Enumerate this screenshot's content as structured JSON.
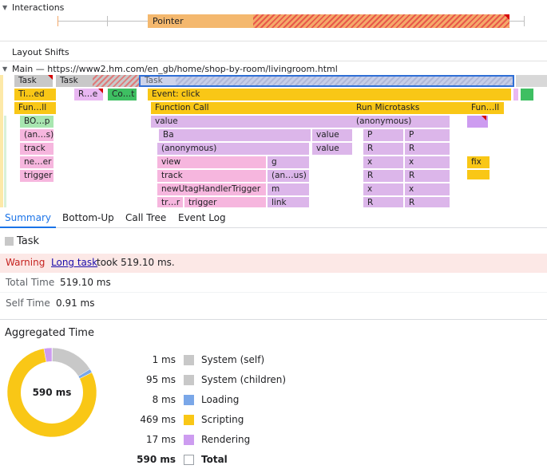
{
  "tracks": {
    "interactions_label": "Interactions",
    "pointer_label": "Pointer",
    "layout_shifts_label": "Layout Shifts",
    "main_label": "Main — https://www2.hm.com/en_gb/home/shop-by-room/livingroom.html"
  },
  "flame": {
    "row0": [
      "Task",
      "Task",
      "Task"
    ],
    "row1": [
      "Ti…ed",
      "R…e",
      "Co…t",
      "Event: click"
    ],
    "row2": [
      "Fun…ll",
      "Function Call",
      "Run Microtasks",
      "Fun…ll"
    ],
    "row3": [
      "BO…p",
      "value",
      "(anonymous)"
    ],
    "row4": [
      "(an…s)",
      "Ba",
      "value",
      "P",
      "P"
    ],
    "row5": [
      "track",
      "(anonymous)",
      "value",
      "R",
      "R"
    ],
    "row6": [
      "ne…er",
      "view",
      "g",
      "x",
      "x",
      "fix"
    ],
    "row7": [
      "trigger",
      "track",
      "(an…us)",
      "R",
      "R"
    ],
    "row8": [
      "newUtagHandlerTrigger",
      "m",
      "x",
      "x"
    ],
    "row9": [
      "tr…r",
      "trigger",
      "link",
      "R",
      "R"
    ]
  },
  "tabs": [
    "Summary",
    "Bottom-Up",
    "Call Tree",
    "Event Log"
  ],
  "summary": {
    "title": "Task",
    "warning_label": "Warning",
    "warning_link": "Long task",
    "warning_text": "took 519.10 ms.",
    "total_time_label": "Total Time",
    "total_time_value": "519.10 ms",
    "self_time_label": "Self Time",
    "self_time_value": "0.91 ms"
  },
  "aggregated": {
    "title": "Aggregated Time",
    "center_label": "590 ms",
    "rows": [
      {
        "ms": "1 ms",
        "name": "System (self)",
        "color": "#c8c8c8"
      },
      {
        "ms": "95 ms",
        "name": "System (children)",
        "color": "#c8c8c8"
      },
      {
        "ms": "8 ms",
        "name": "Loading",
        "color": "#7aa7e8"
      },
      {
        "ms": "469 ms",
        "name": "Scripting",
        "color": "#f9c716"
      },
      {
        "ms": "17 ms",
        "name": "Rendering",
        "color": "#cd9cf0"
      },
      {
        "ms": "590 ms",
        "name": "Total",
        "color": "#ffffff"
      }
    ],
    "pie": [
      {
        "name": "System (self)",
        "value": 1,
        "color": "#c8c8c8"
      },
      {
        "name": "System (children)",
        "value": 95,
        "color": "#c8c8c8"
      },
      {
        "name": "Loading",
        "value": 8,
        "color": "#7aa7e8"
      },
      {
        "name": "Scripting",
        "value": 469,
        "color": "#f9c716"
      },
      {
        "name": "Rendering",
        "value": 17,
        "color": "#cd9cf0"
      }
    ]
  }
}
